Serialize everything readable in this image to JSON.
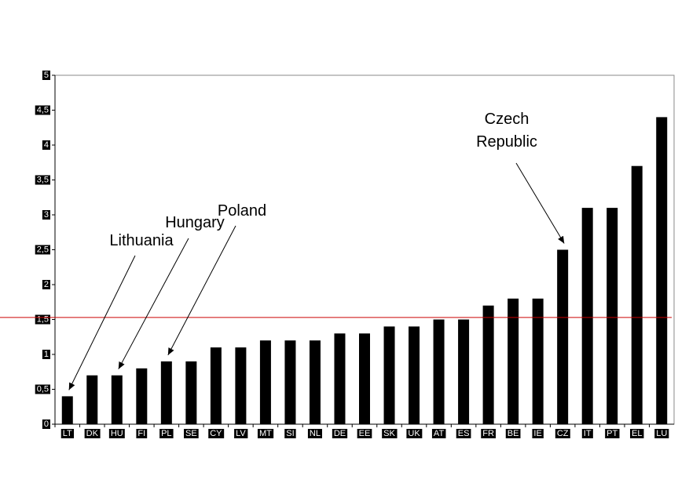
{
  "chart_data": {
    "type": "bar",
    "title": "",
    "xlabel": "",
    "ylabel": "",
    "categories": [
      "LT",
      "DK",
      "HU",
      "FI",
      "PL",
      "SE",
      "CY",
      "LV",
      "MT",
      "SI",
      "NL",
      "DE",
      "EE",
      "SK",
      "UK",
      "AT",
      "ES",
      "FR",
      "BE",
      "IE",
      "CZ",
      "IT",
      "PT",
      "EL",
      "LU"
    ],
    "values": [
      0.4,
      0.7,
      0.7,
      0.8,
      0.9,
      0.9,
      1.1,
      1.1,
      1.2,
      1.2,
      1.2,
      1.3,
      1.3,
      1.4,
      1.4,
      1.5,
      1.5,
      1.7,
      1.8,
      1.8,
      2.5,
      3.1,
      3.1,
      3.7,
      4.4
    ],
    "ylim": [
      0,
      5
    ],
    "yticks": [
      0,
      0.5,
      1,
      1.5,
      2,
      2.5,
      3,
      3.5,
      4,
      4.5,
      5
    ],
    "ytick_labels": [
      "0",
      "0,5",
      "1",
      "1,5",
      "2",
      "2,5",
      "3",
      "3,5",
      "4",
      "4,5",
      "5"
    ],
    "grid": false,
    "bar_color": "#000000",
    "reference_line": {
      "value": 1.53,
      "color": "#cc0000"
    },
    "annotations": [
      {
        "lines": [
          "Lithuania"
        ],
        "target": "LT"
      },
      {
        "lines": [
          "Hungary"
        ],
        "target": "HU"
      },
      {
        "lines": [
          "Poland"
        ],
        "target": "PL"
      },
      {
        "lines": [
          "Czech",
          "Republic"
        ],
        "target": "CZ"
      }
    ]
  }
}
